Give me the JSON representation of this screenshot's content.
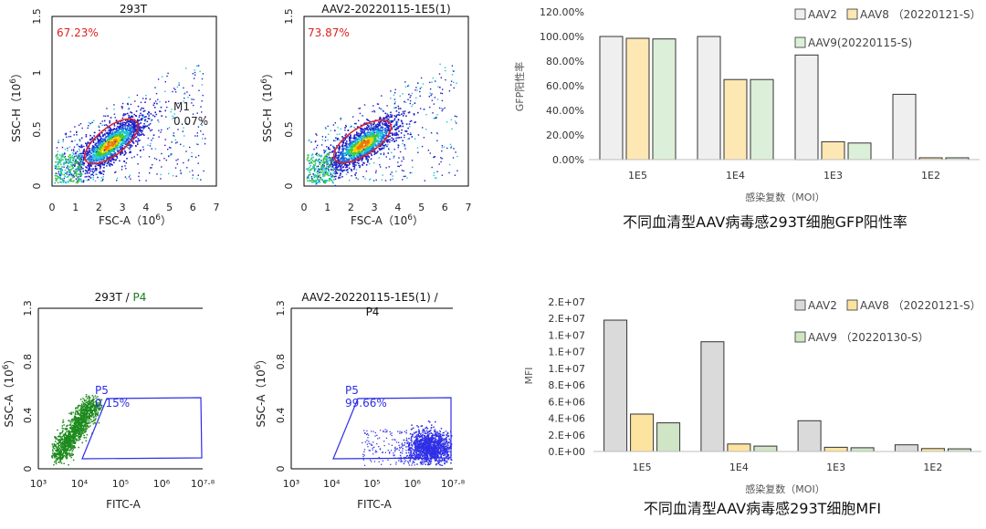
{
  "flow_plots": [
    {
      "id": "top-left",
      "title": "293T",
      "gate_percent": "67.23%",
      "marker_label": "M1",
      "marker_percent": "0.07%",
      "xlabel": "FSC-A（10",
      "xlabel_exp": "6",
      "xlabel_end": "）",
      "ylabel": "SSC-H（10",
      "ylabel_exp": "6",
      "ylabel_end": "）",
      "x_ticks": [
        "0",
        "1",
        "2",
        "3",
        "4",
        "5",
        "6",
        "7"
      ],
      "y_ticks": [
        "0",
        "0.5",
        "1",
        "1.5"
      ]
    },
    {
      "id": "top-mid",
      "title": "AAV2-20220115-1E5(1)",
      "gate_percent": "73.87%",
      "xlabel": "FSC-A（10",
      "xlabel_exp": "6",
      "xlabel_end": "）",
      "ylabel": "SSC-H（10",
      "ylabel_exp": "6",
      "ylabel_end": "）",
      "x_ticks": [
        "0",
        "1",
        "2",
        "3",
        "4",
        "5",
        "6",
        "7"
      ],
      "y_ticks": [
        "0",
        "0.5",
        "1",
        "1.5"
      ]
    },
    {
      "id": "bottom-left",
      "title": "293T / ",
      "title_gate": "P4",
      "gate_name": "P5",
      "gate_percent": "0.15%",
      "xlabel": "FITC-A",
      "ylabel": "SSC-A（10",
      "ylabel_exp": "6",
      "ylabel_end": "）",
      "x_ticks": [
        "10³",
        "10⁴",
        "10⁵",
        "10⁶",
        "10⁷·⁸"
      ],
      "y_ticks": [
        "0",
        "0.4",
        "0.8",
        "1.3"
      ]
    },
    {
      "id": "bottom-mid",
      "title": "AAV2-20220115-1E5(1) / ",
      "title_gate": "P4",
      "gate_name": "P5",
      "gate_percent": "99.66%",
      "xlabel": "FITC-A",
      "ylabel": "SSC-A（10",
      "ylabel_exp": "6",
      "ylabel_end": "）",
      "x_ticks": [
        "10³",
        "10⁴",
        "10⁵",
        "10⁶",
        "10⁷·⁸"
      ],
      "y_ticks": [
        "0",
        "0.4",
        "0.8",
        "1.3"
      ]
    }
  ],
  "colors": {
    "aav2": "#efefef",
    "aav8": "#fde7b3",
    "aav9": "#dcefd8",
    "aav2_mfi": "#dadada",
    "aav8_mfi": "#fde3a0",
    "aav9_mfi": "#cfe5c6",
    "gate_red": "#e02020",
    "gate_blue": "#2e2ee6",
    "green_dots": "#1c8a1c",
    "title_green": "#1a7a1a"
  },
  "chart_data": [
    {
      "type": "bar",
      "categories": [
        "1E5",
        "1E4",
        "1E3",
        "1E2"
      ],
      "series": [
        {
          "name": "AAV2",
          "values": [
            1.0,
            1.0,
            0.85,
            0.53
          ]
        },
        {
          "name": "AAV8 （20220121-S）",
          "values": [
            0.985,
            0.65,
            0.145,
            0.015
          ]
        },
        {
          "name": "AAV9(20220115-S)",
          "values": [
            0.98,
            0.65,
            0.135,
            0.015
          ]
        }
      ],
      "ylim": [
        0,
        1.2
      ],
      "y_ticks": [
        "0.00%",
        "20.00%",
        "40.00%",
        "60.00%",
        "80.00%",
        "100.00%",
        "120.00%"
      ],
      "ylabel": "GFP阳性率",
      "xlabel": "感染复数（MOI）",
      "title": "不同血清型AAV病毒感293T细胞GFP阳性率",
      "legend_position": "top-right",
      "grid": false
    },
    {
      "type": "bar",
      "categories": [
        "1E5",
        "1E4",
        "1E3",
        "1E2"
      ],
      "series": [
        {
          "name": "AAV2",
          "values": [
            15800000,
            13200000,
            3700000,
            800000
          ]
        },
        {
          "name": "AAV8 （20220121-S）",
          "values": [
            4500000,
            900000,
            500000,
            350000
          ]
        },
        {
          "name": "AAV9 （20220130-S）",
          "values": [
            3450000,
            650000,
            450000,
            320000
          ]
        }
      ],
      "ylim": [
        0,
        18000000
      ],
      "y_ticks": [
        "0.E+00",
        "2.E+06",
        "4.E+06",
        "6.E+06",
        "8.E+06",
        "1.E+07",
        "1.E+07",
        "1.E+07",
        "2.E+07",
        "2.E+07"
      ],
      "ylabel": "MFI",
      "xlabel": "感染复数（MOI）",
      "title": "不同血清型AAV病毒感293T细胞MFI",
      "legend_position": "top-right",
      "grid": false
    }
  ]
}
